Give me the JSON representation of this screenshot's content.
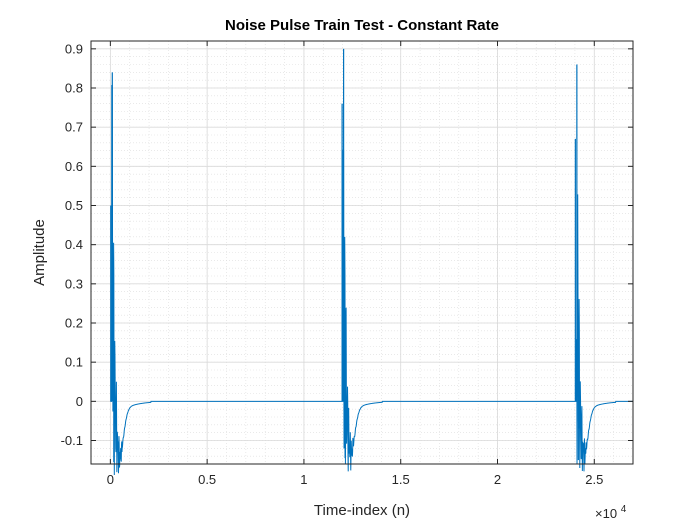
{
  "figure": {
    "title": "Noise Pulse Train Test - Constant Rate",
    "xlabel": "Time-index (n)",
    "ylabel": "Amplitude",
    "x_exponent_base": "×10",
    "x_exponent_power": "4"
  },
  "chart_data": {
    "type": "line",
    "title": "Noise Pulse Train Test - Constant Rate",
    "xlabel": "Time-index (n)",
    "ylabel": "Amplitude",
    "x_multiplier": 10000,
    "xlim": [
      -0.1,
      2.7
    ],
    "ylim": [
      -0.16,
      0.92
    ],
    "xticks": [
      0,
      0.5,
      1,
      1.5,
      2,
      2.5
    ],
    "xtick_labels": [
      "0",
      "0.5",
      "1",
      "1.5",
      "2",
      "2.5"
    ],
    "yticks": [
      -0.1,
      0,
      0.1,
      0.2,
      0.3,
      0.4,
      0.5,
      0.6,
      0.7,
      0.8,
      0.9
    ],
    "ytick_labels": [
      "-0.1",
      "0",
      "0.1",
      "0.2",
      "0.3",
      "0.4",
      "0.5",
      "0.6",
      "0.7",
      "0.8",
      "0.9"
    ],
    "grid": true,
    "minor_grid": true,
    "series": [
      {
        "color": "#0072BD",
        "pulses": [
          {
            "x": 0.01,
            "peak": 0.84,
            "trough": -0.155,
            "secondary": 0.5
          },
          {
            "x": 1.205,
            "peak": 0.9,
            "trough": -0.145,
            "secondary": 0.76
          },
          {
            "x": 2.41,
            "peak": 0.86,
            "trough": -0.15,
            "secondary": 0.67
          }
        ],
        "baseline": 0.0
      }
    ]
  }
}
